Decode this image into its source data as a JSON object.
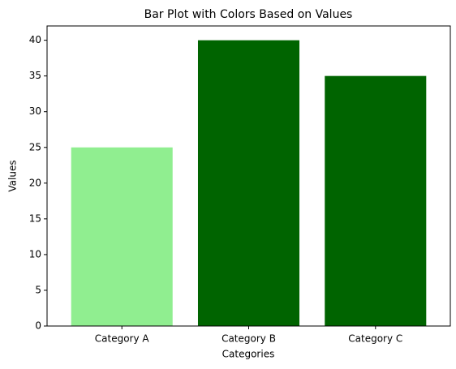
{
  "chart_data": {
    "type": "bar",
    "title": "Bar Plot with Colors Based on Values",
    "x_label": "Categories",
    "y_label": "Values",
    "categories": [
      "Category A",
      "Category B",
      "Category C"
    ],
    "values": [
      25,
      40,
      35
    ],
    "colors": [
      "#90ee90",
      "#006400",
      "#006400"
    ],
    "ylim": [
      0,
      42
    ],
    "yticks": [
      0,
      5,
      10,
      15,
      20,
      25,
      30,
      35,
      40
    ],
    "grid": false
  }
}
